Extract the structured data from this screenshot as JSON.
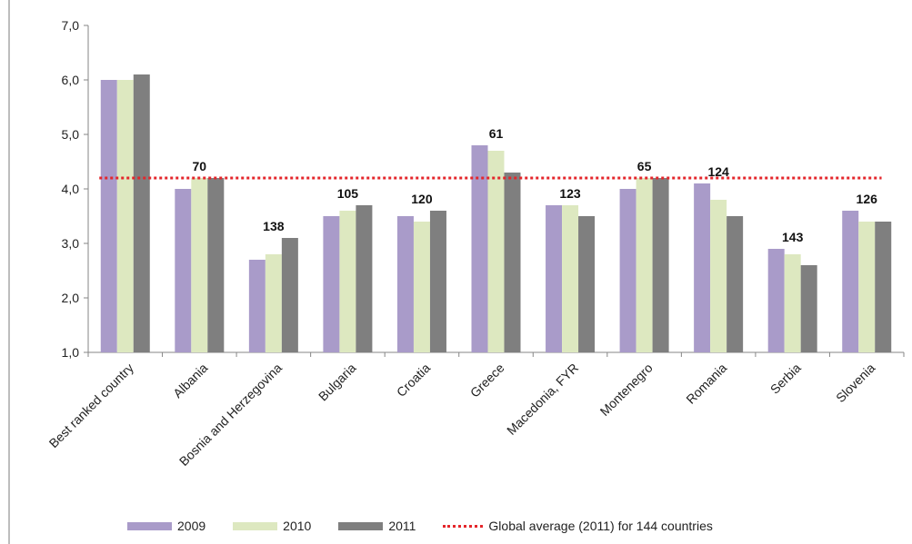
{
  "chart_data": {
    "type": "bar",
    "categories": [
      "Best ranked country",
      "Albania",
      "Bosnia and Herzegovina",
      "Bulgaria",
      "Croatia",
      "Greece",
      "Macedonia, FYR",
      "Montenegro",
      "Romania",
      "Serbia",
      "Slovenia"
    ],
    "series": [
      {
        "name": "2009",
        "color": "#a99bc9",
        "values": [
          6.0,
          4.0,
          2.7,
          3.5,
          3.5,
          4.8,
          3.7,
          4.0,
          4.1,
          2.9,
          3.6
        ]
      },
      {
        "name": "2010",
        "color": "#dde8c0",
        "values": [
          6.0,
          4.2,
          2.8,
          3.6,
          3.4,
          4.7,
          3.7,
          4.2,
          3.8,
          2.8,
          3.4
        ]
      },
      {
        "name": "2011",
        "color": "#7f7f7f",
        "values": [
          6.1,
          4.2,
          3.1,
          3.7,
          3.6,
          4.3,
          3.5,
          4.2,
          3.5,
          2.6,
          3.4
        ]
      }
    ],
    "reference_line": {
      "name": "Global average (2011) for 144 countries",
      "value": 4.2,
      "color": "#e4262b",
      "style": "dotted"
    },
    "data_labels": [
      "",
      "70",
      "138",
      "105",
      "120",
      "61",
      "123",
      "65",
      "124",
      "143",
      "126"
    ],
    "y_ticks": [
      "1,0",
      "2,0",
      "3,0",
      "4,0",
      "5,0",
      "6,0",
      "7,0"
    ],
    "ylim": [
      1,
      7
    ],
    "title": "",
    "xlabel": "",
    "ylabel": "",
    "grid": false,
    "legend": "bottom"
  }
}
